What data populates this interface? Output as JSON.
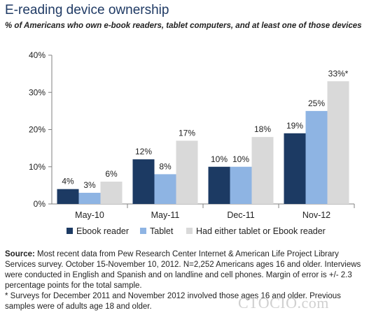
{
  "title": "E-reading device ownership",
  "subtitle": "% of Americans who own e-book readers, tablet computers, and at least one of those devices",
  "chart_data": {
    "type": "bar",
    "categories": [
      "May-10",
      "May-11",
      "Dec-11",
      "Nov-12"
    ],
    "series": [
      {
        "name": "Ebook reader",
        "values": [
          4,
          12,
          10,
          19
        ],
        "labels": [
          "4%",
          "12%",
          "10%",
          "19%"
        ],
        "color": "#1c3a63"
      },
      {
        "name": "Tablet",
        "values": [
          3,
          8,
          10,
          25
        ],
        "labels": [
          "3%",
          "8%",
          "10%",
          "25%"
        ],
        "color": "#8eb4e3"
      },
      {
        "name": "Had either tablet or Ebook reader",
        "values": [
          6,
          17,
          18,
          33
        ],
        "labels": [
          "6%",
          "17%",
          "18%",
          "33%*"
        ],
        "color": "#d9d9d9"
      }
    ],
    "yticks": [
      "0%",
      "10%",
      "20%",
      "30%",
      "40%"
    ],
    "ylim": [
      0,
      40
    ],
    "grid": false,
    "legend": "bottom"
  },
  "footer": {
    "source_label": "Source:",
    "source_text": " Most recent data from Pew Research Center Internet & American Life Project Library Services survey. October 15-November 10, 2012. N=2,252 Americans ages 16 and older. Interviews were conducted in English and Spanish and on landline and cell phones. Margin of error is +/- 2.3 percentage points for the total sample.",
    "note": "* Surveys for December 2011 and November 2012 involved those ages 16 and older. Previous samples were of adults age 18 and older."
  },
  "watermark": "CTOCIO.com"
}
